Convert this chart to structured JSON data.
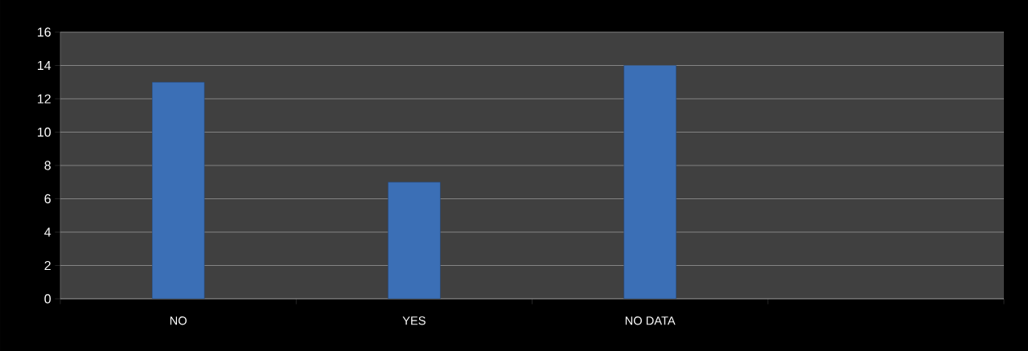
{
  "chart_data": {
    "type": "bar",
    "categories": [
      "NO",
      "YES",
      "NO DATA",
      null
    ],
    "values": [
      13,
      7,
      14,
      null
    ],
    "color": "#3b6fb6",
    "ylim": [
      0,
      16
    ],
    "yticks": [
      0,
      2,
      4,
      6,
      8,
      10,
      12,
      14,
      16
    ],
    "grid": "y"
  }
}
